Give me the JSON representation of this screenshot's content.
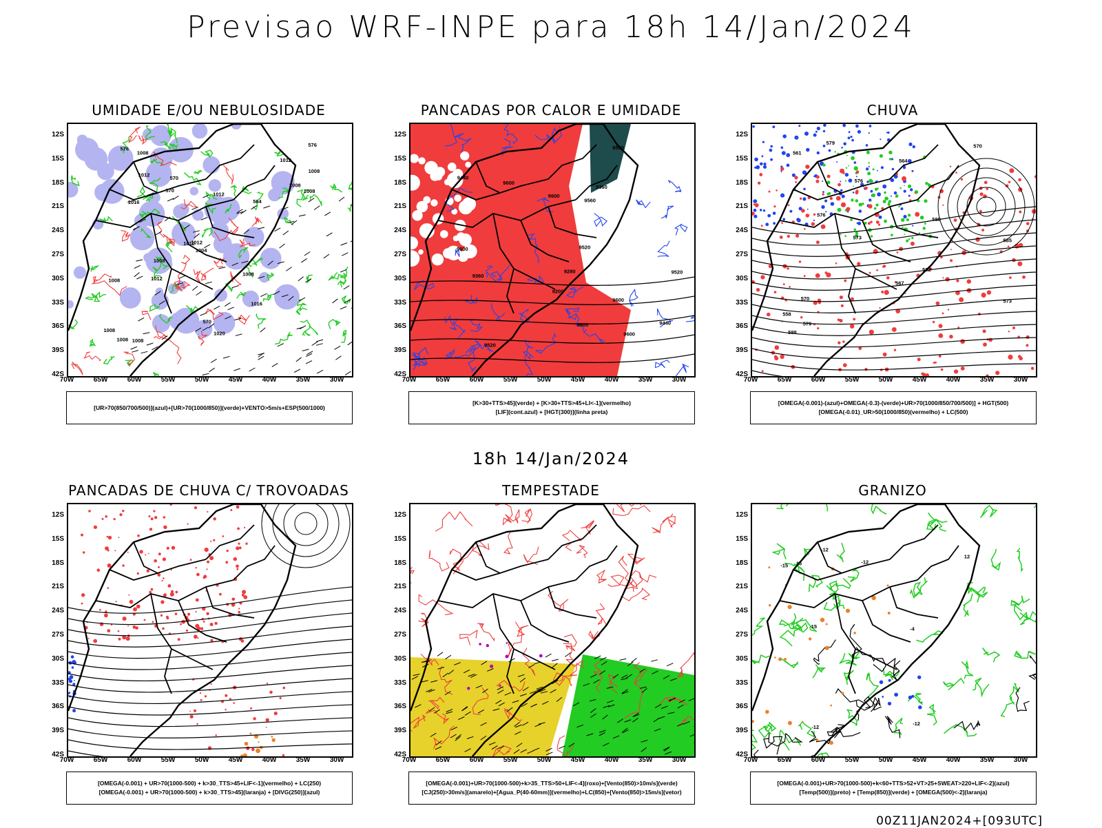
{
  "header": {
    "title": "Previsao WRF-INPE  para 18h 14/Jan/2024",
    "mid_label": "18h 14/Jan/2024",
    "run_label": "00Z11JAN2024+[093UTC]"
  },
  "axes": {
    "y_ticks": [
      "12S",
      "15S",
      "18S",
      "21S",
      "24S",
      "27S",
      "30S",
      "33S",
      "36S",
      "39S",
      "42S"
    ],
    "x_ticks": [
      "70W",
      "65W",
      "60W",
      "55W",
      "50W",
      "45W",
      "40W",
      "35W",
      "30W"
    ]
  },
  "colors": {
    "red": "#f03c3c",
    "green": "#22cc22",
    "blue": "#2244ee",
    "lavender": "#b4b4f0",
    "yellow": "#e6d22a",
    "darkteal": "#1e4b4b",
    "orange": "#e8822a",
    "purple": "#b000c0"
  },
  "chart_data": [
    {
      "type": "map",
      "title": "UMIDADE E/OU NEBULOSIDADE",
      "legend": [
        "[UR>70(850/700/500)](azul)+[UR>70(1000/850)](verde)+VENTO>5m/s+ESP(500/1000)"
      ],
      "contour_labels": [
        "1008",
        "1012",
        "1012",
        "1016",
        "1008",
        "1012",
        "1020",
        "1008",
        "1012",
        "1008",
        "1012",
        "1016",
        "1008",
        "1004",
        "1008",
        "1008",
        "1012",
        "1008",
        "1008",
        "1008",
        "570",
        "576",
        "570",
        "564",
        "576",
        "570"
      ]
    },
    {
      "type": "map",
      "title": "PANCADAS POR CALOR E UMIDADE",
      "legend": [
        "[K>30+TTS>45](verde) + [K>30+TTS>45+LI<-1](vermelho)",
        "[LIF](cont.azul) + [HGT(300)](linha preta)"
      ],
      "contour_labels": [
        "9600",
        "9560",
        "9600",
        "9600",
        "9560",
        "9600",
        "9600",
        "9520",
        "9520",
        "9600",
        "9440",
        "9440",
        "9360",
        "9280",
        "9200",
        "9360",
        "9520"
      ]
    },
    {
      "type": "map",
      "title": "CHUVA",
      "legend": [
        "[OMEGA(-0.001)-(azul)+OMEGA(-0.3)-(verde)+UR>70(1000/850/700/500)] + HGT(500)",
        "[OMEGA(-0.01)_UR>50(1000/850)(vermelho) + LC(500)"
      ],
      "contour_labels": [
        "588",
        "588",
        "585",
        "582",
        "579",
        "576",
        "573",
        "570",
        "567",
        "564",
        "561",
        "558",
        "579",
        "576",
        "573",
        "570"
      ]
    },
    {
      "type": "map",
      "title": "PANCADAS DE CHUVA C/ TROVOADAS",
      "legend": [
        "[OMEGA(-0.001) + UR>70(1000-500) + k>30_TTS>45+LIF<-1](vermelho) + LC(250)",
        "[OMEGA(-0.001) + UR>70(1000-500) + k>30_TTS>45](laranja) + [DIVG(250)](azul)"
      ],
      "contour_labels": []
    },
    {
      "type": "map",
      "title": "TEMPESTADE",
      "legend": [
        "[OMEGA(-0.001)+UR>70(1000-500)+k>35_TTS>50+LIF<-4](roxo)+[Vento(850)>10m/s](verde)",
        "[CJ(250)>30m/s](amarelo)+[Agua_P(40-60mm)](vermelho)+LC(850)+[Vento(850)>15m/s](vetor)"
      ],
      "contour_labels": []
    },
    {
      "type": "map",
      "title": "GRANIZO",
      "legend": [
        "[OMEGA(-0.001)+UR>70(1000-500)+k<60+TTS>52+VT>25+SWEAT>220+LIF<-2](azul)",
        "[Temp(500)](preto) + [Temp(850)](verde) + [OMEGA(500)<-2](laranja)"
      ],
      "contour_labels": [
        "-4",
        "-12",
        "-15",
        "-12",
        "-15",
        "-12",
        "-12",
        "12",
        "15"
      ]
    }
  ]
}
